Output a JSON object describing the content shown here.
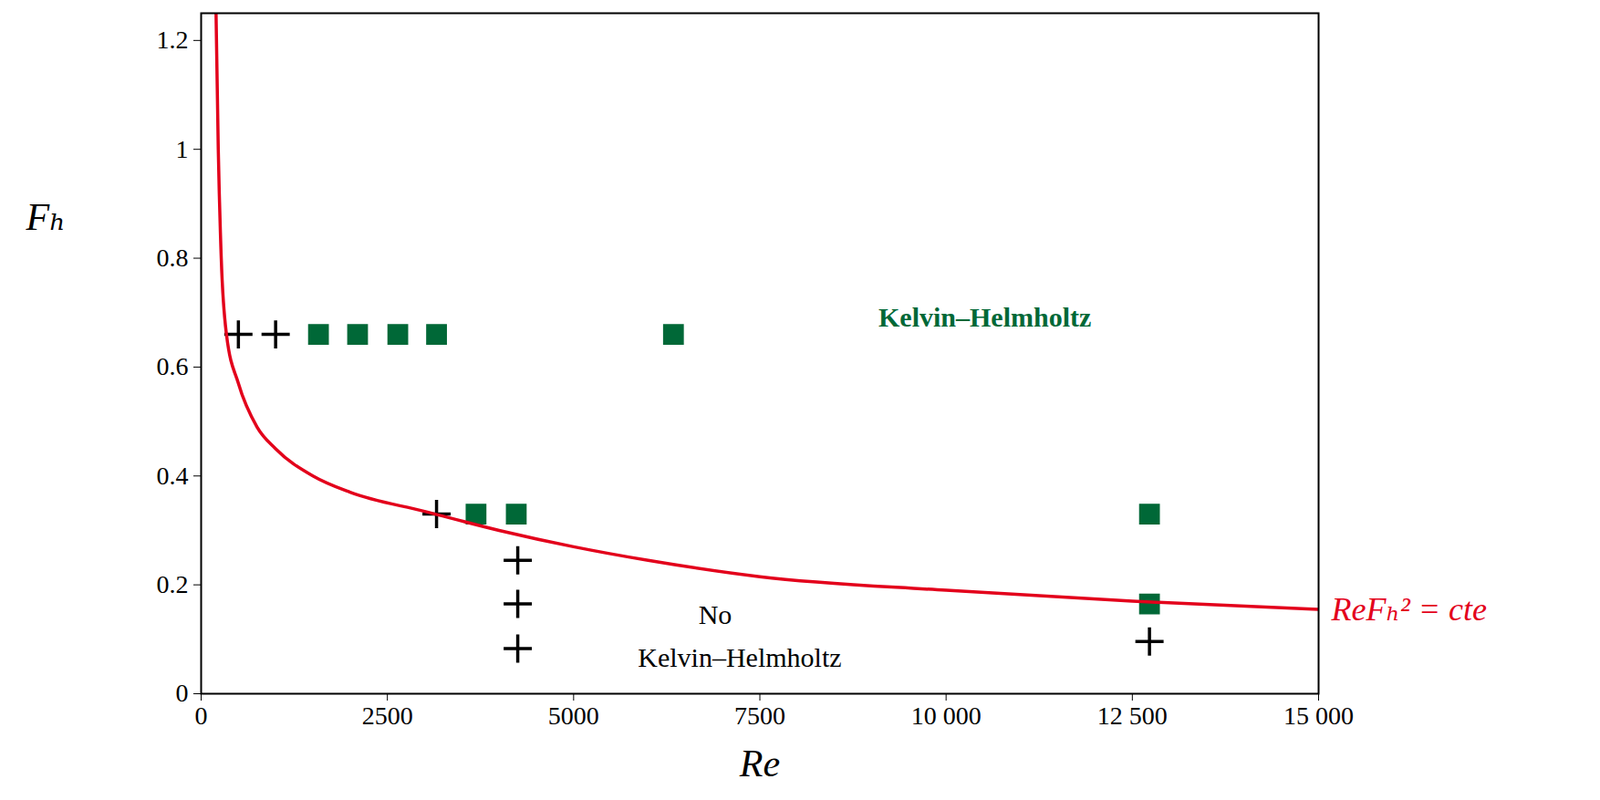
{
  "chart_data": {
    "type": "scatter",
    "xlabel": "Re",
    "ylabel": "Fₕ",
    "xlim": [
      0,
      15000
    ],
    "ylim": [
      0,
      1.25
    ],
    "xticks": [
      0,
      2500,
      5000,
      7500,
      {
        "value": 10000,
        "label": "10 000"
      },
      {
        "value": 12500,
        "label": "12 500"
      },
      {
        "value": 15000,
        "label": "15 000"
      }
    ],
    "yticks": [
      0,
      0.2,
      0.4,
      0.6,
      0.8,
      1,
      1.2
    ],
    "grid": false,
    "series": [
      {
        "marker": "plus",
        "color": "#000000",
        "x": [
          500,
          1000,
          3160,
          4250,
          4250,
          4250,
          12730
        ],
        "y": [
          0.66,
          0.66,
          0.33,
          0.245,
          0.165,
          0.083,
          0.096
        ]
      },
      {
        "marker": "square",
        "color": "#006837",
        "x": [
          1575,
          2100,
          2640,
          3160,
          6340,
          3690,
          4230,
          12730,
          12730
        ],
        "y": [
          0.66,
          0.66,
          0.66,
          0.66,
          0.66,
          0.33,
          0.33,
          0.33,
          0.165
        ]
      },
      {
        "type": "line",
        "name": "ReFₕ² = cte",
        "color": "#e3001b",
        "x": [
          200,
          230,
          270,
          340,
          500,
          750,
          1000,
          1500,
          2000,
          3000,
          4000,
          5000,
          6000,
          7500,
          10000,
          12500,
          15000
        ],
        "y": [
          1.25,
          1.0,
          0.8,
          0.66,
          0.57,
          0.49,
          0.45,
          0.4,
          0.37,
          0.335,
          0.3,
          0.27,
          0.245,
          0.215,
          0.19,
          0.17,
          0.155
        ]
      }
    ],
    "annotations": [
      {
        "text": "Kelvin–Helmholtz",
        "x": 10520,
        "y": 0.69,
        "color": "#006837"
      },
      {
        "text": "No",
        "x": 6900,
        "y": 0.144,
        "color": "#000000"
      },
      {
        "text": "Kelvin–Helmholtz",
        "x": 7230,
        "y": 0.065,
        "color": "#000000"
      }
    ]
  }
}
